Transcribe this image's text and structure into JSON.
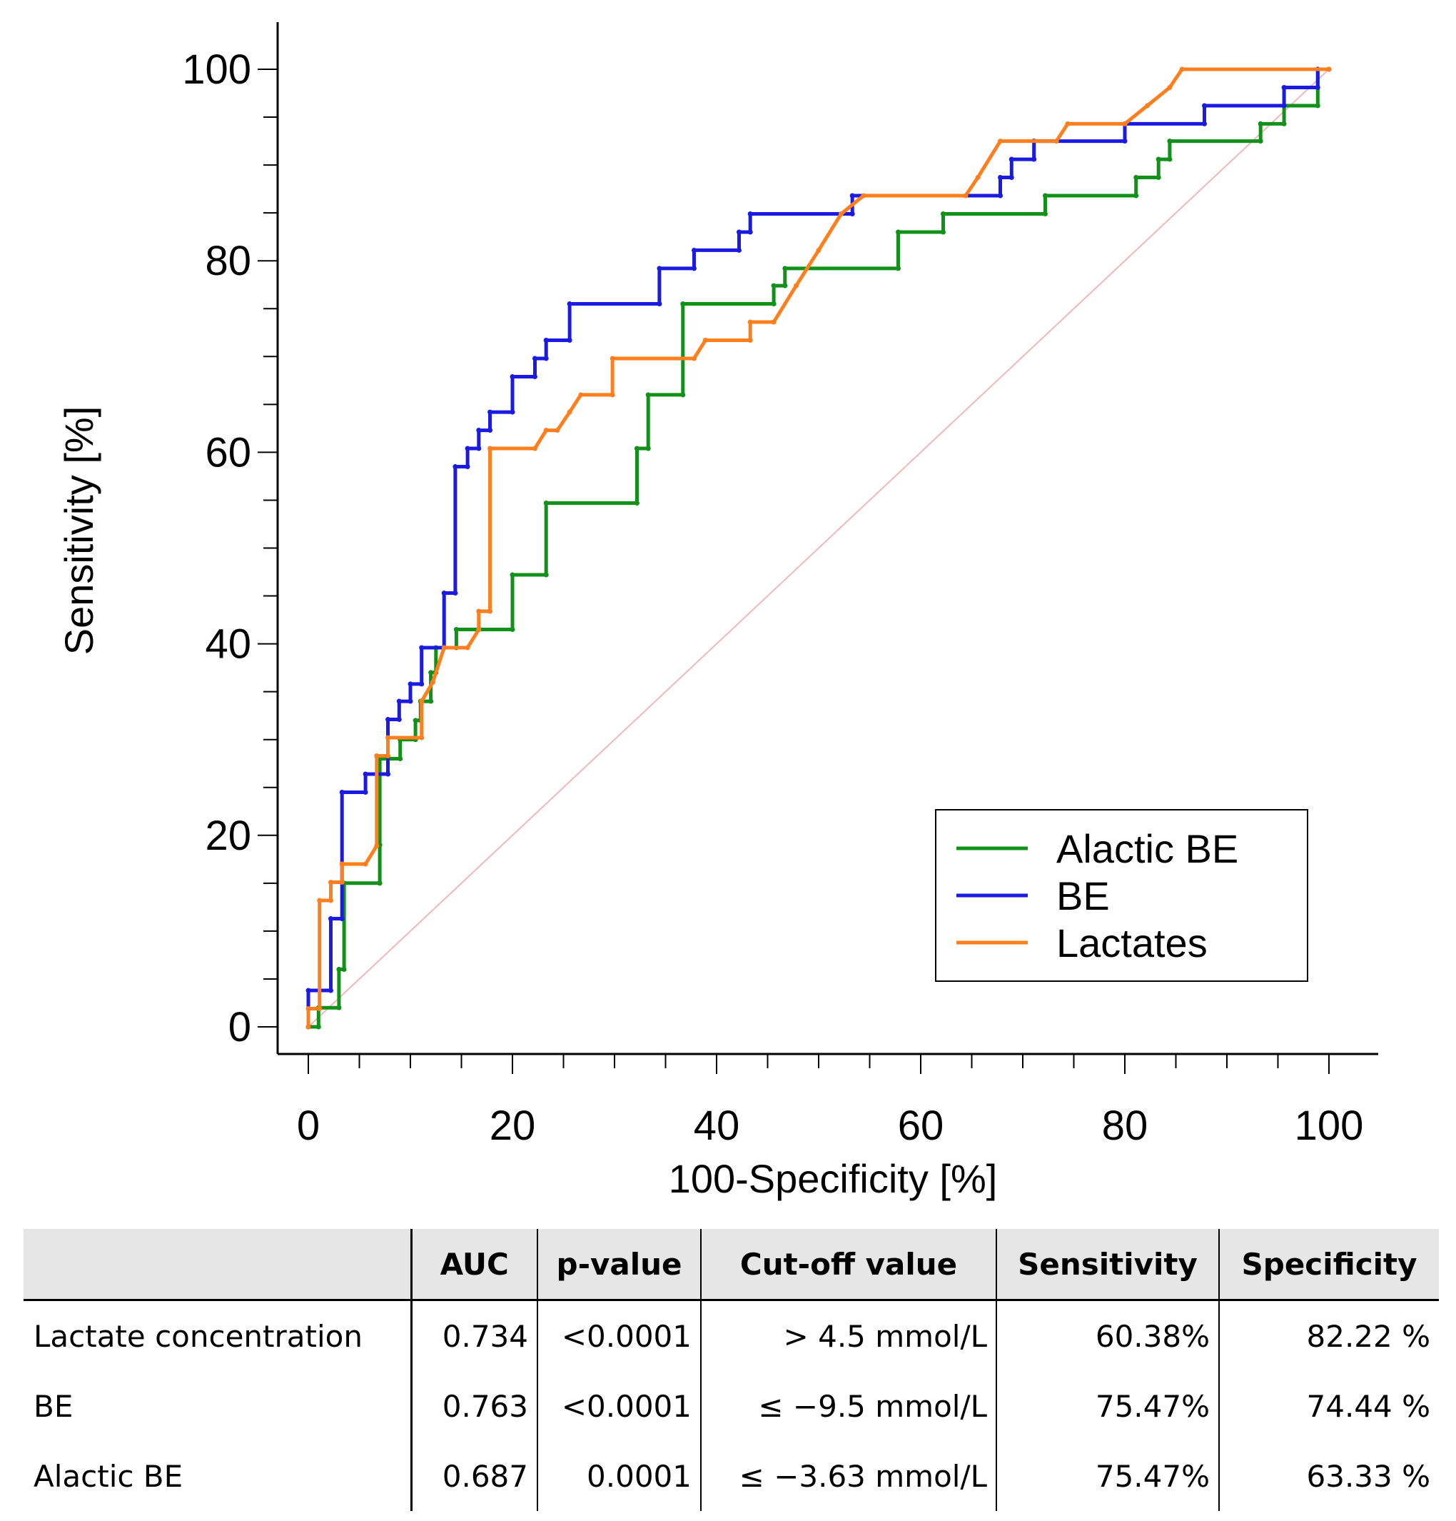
{
  "chart_data": {
    "type": "line",
    "xlabel": "100-Specificity [%]",
    "ylabel": "Sensitivity [%]",
    "xlim": [
      0,
      100
    ],
    "ylim": [
      0,
      100
    ],
    "xticks": [
      0,
      20,
      40,
      60,
      80,
      100
    ],
    "yticks": [
      0,
      20,
      40,
      60,
      80,
      100
    ],
    "legend_position": "bottom-right",
    "reference_line": {
      "from": [
        0,
        0
      ],
      "to": [
        100,
        100
      ],
      "color": "#f2b8b8"
    },
    "series": [
      {
        "name": "Alactic BE",
        "color": "#11911a",
        "points": [
          [
            0,
            0
          ],
          [
            1,
            0
          ],
          [
            1,
            2
          ],
          [
            3,
            2
          ],
          [
            3,
            6
          ],
          [
            3.5,
            6
          ],
          [
            3.5,
            15
          ],
          [
            7,
            15
          ],
          [
            7,
            19
          ],
          [
            7,
            28
          ],
          [
            9,
            28
          ],
          [
            9,
            30
          ],
          [
            10.5,
            30
          ],
          [
            10.5,
            32
          ],
          [
            11,
            32
          ],
          [
            11,
            34
          ],
          [
            12,
            34
          ],
          [
            12,
            37
          ],
          [
            12.5,
            37
          ],
          [
            12.5,
            39.6
          ],
          [
            14.5,
            39.6
          ],
          [
            14.5,
            41.5
          ],
          [
            20,
            41.5
          ],
          [
            20,
            47.2
          ],
          [
            23.3,
            47.2
          ],
          [
            23.3,
            54.7
          ],
          [
            32.2,
            54.7
          ],
          [
            32.2,
            60.4
          ],
          [
            33.3,
            60.4
          ],
          [
            33.3,
            66
          ],
          [
            36.7,
            66
          ],
          [
            36.7,
            75.5
          ],
          [
            45.6,
            75.5
          ],
          [
            45.6,
            77.4
          ],
          [
            46.7,
            77.4
          ],
          [
            46.7,
            79.2
          ],
          [
            57.8,
            79.2
          ],
          [
            57.8,
            83
          ],
          [
            62.2,
            83
          ],
          [
            62.2,
            84.9
          ],
          [
            72.2,
            84.9
          ],
          [
            72.2,
            86.8
          ],
          [
            81.1,
            86.8
          ],
          [
            81.1,
            88.7
          ],
          [
            83.3,
            88.7
          ],
          [
            83.3,
            90.6
          ],
          [
            84.4,
            90.6
          ],
          [
            84.4,
            92.5
          ],
          [
            93.3,
            92.5
          ],
          [
            93.3,
            94.3
          ],
          [
            95.6,
            94.3
          ],
          [
            95.6,
            96.2
          ],
          [
            98.9,
            96.2
          ],
          [
            98.9,
            100
          ]
        ]
      },
      {
        "name": "BE",
        "color": "#1a1ae0",
        "points": [
          [
            0,
            0
          ],
          [
            0,
            3.8
          ],
          [
            2.2,
            3.8
          ],
          [
            2.2,
            11.3
          ],
          [
            3.3,
            11.3
          ],
          [
            3.3,
            24.5
          ],
          [
            5.6,
            24.5
          ],
          [
            5.6,
            26.4
          ],
          [
            7.8,
            26.4
          ],
          [
            7.8,
            32.1
          ],
          [
            8.9,
            32.1
          ],
          [
            8.9,
            34
          ],
          [
            10,
            34
          ],
          [
            10,
            35.8
          ],
          [
            11.1,
            35.8
          ],
          [
            11.1,
            39.6
          ],
          [
            13.3,
            39.6
          ],
          [
            13.3,
            45.3
          ],
          [
            14.4,
            45.3
          ],
          [
            14.4,
            58.5
          ],
          [
            15.6,
            58.5
          ],
          [
            15.6,
            60.4
          ],
          [
            16.7,
            60.4
          ],
          [
            16.7,
            62.3
          ],
          [
            17.8,
            62.3
          ],
          [
            17.8,
            64.2
          ],
          [
            20,
            64.2
          ],
          [
            20,
            67.9
          ],
          [
            22.2,
            67.9
          ],
          [
            22.2,
            69.8
          ],
          [
            23.3,
            69.8
          ],
          [
            23.3,
            71.7
          ],
          [
            25.6,
            71.7
          ],
          [
            25.6,
            75.5
          ],
          [
            34.4,
            75.5
          ],
          [
            34.4,
            79.2
          ],
          [
            37.8,
            79.2
          ],
          [
            37.8,
            81.1
          ],
          [
            42.2,
            81.1
          ],
          [
            42.2,
            83
          ],
          [
            43.3,
            83
          ],
          [
            43.3,
            84.9
          ],
          [
            53.3,
            84.9
          ],
          [
            53.3,
            86.8
          ],
          [
            67.8,
            86.8
          ],
          [
            67.8,
            88.7
          ],
          [
            68.9,
            88.7
          ],
          [
            68.9,
            90.6
          ],
          [
            71.1,
            90.6
          ],
          [
            71.1,
            92.5
          ],
          [
            80,
            92.5
          ],
          [
            80,
            94.3
          ],
          [
            87.8,
            94.3
          ],
          [
            87.8,
            96.2
          ],
          [
            95.6,
            96.2
          ],
          [
            95.6,
            98.1
          ],
          [
            98.9,
            98.1
          ],
          [
            98.9,
            100
          ],
          [
            100,
            100
          ]
        ]
      },
      {
        "name": "Lactates",
        "color": "#ff7f1f",
        "points": [
          [
            0,
            0
          ],
          [
            0,
            1.9
          ],
          [
            1.1,
            1.9
          ],
          [
            1.1,
            13.2
          ],
          [
            2.2,
            13.2
          ],
          [
            2.2,
            15.1
          ],
          [
            3.3,
            15.1
          ],
          [
            3.3,
            17
          ],
          [
            5.6,
            17
          ],
          [
            6.7,
            18.9
          ],
          [
            6.7,
            28.3
          ],
          [
            7.8,
            28.3
          ],
          [
            7.8,
            30.2
          ],
          [
            11.1,
            30.2
          ],
          [
            11.1,
            34
          ],
          [
            12.2,
            36
          ],
          [
            13.3,
            39.6
          ],
          [
            15.6,
            39.6
          ],
          [
            16.7,
            41.5
          ],
          [
            16.7,
            43.4
          ],
          [
            17.8,
            43.4
          ],
          [
            17.8,
            60.4
          ],
          [
            22.2,
            60.4
          ],
          [
            23.3,
            62.3
          ],
          [
            24.4,
            62.3
          ],
          [
            25.6,
            64.2
          ],
          [
            26.7,
            66
          ],
          [
            29.8,
            66
          ],
          [
            29.8,
            69.8
          ],
          [
            37.8,
            69.8
          ],
          [
            38.9,
            71.7
          ],
          [
            43.3,
            71.7
          ],
          [
            43.3,
            73.6
          ],
          [
            45.6,
            73.6
          ],
          [
            47.8,
            77.4
          ],
          [
            50,
            81.1
          ],
          [
            52.2,
            84.9
          ],
          [
            54.4,
            86.8
          ],
          [
            64.4,
            86.8
          ],
          [
            65.6,
            88.7
          ],
          [
            67.8,
            92.5
          ],
          [
            73.3,
            92.5
          ],
          [
            74.4,
            94.3
          ],
          [
            80,
            94.3
          ],
          [
            82.2,
            96.2
          ],
          [
            84.4,
            98.1
          ],
          [
            85.6,
            100
          ],
          [
            100,
            100
          ]
        ]
      }
    ]
  },
  "table": {
    "headers": [
      "",
      "AUC",
      "p-value",
      "Cut-off value",
      "Sensitivity",
      "Specificity"
    ],
    "rows": [
      [
        "Lactate concentration",
        "0.734",
        "<0.0001",
        "> 4.5 mmol/L",
        "60.38%",
        "82.22 %"
      ],
      [
        "BE",
        "0.763",
        "<0.0001",
        "≤ −9.5 mmol/L",
        "75.47%",
        "74.44 %"
      ],
      [
        "Alactic BE",
        "0.687",
        "0.0001",
        "≤ −3.63 mmol/L",
        "75.47%",
        "63.33 %"
      ]
    ]
  }
}
